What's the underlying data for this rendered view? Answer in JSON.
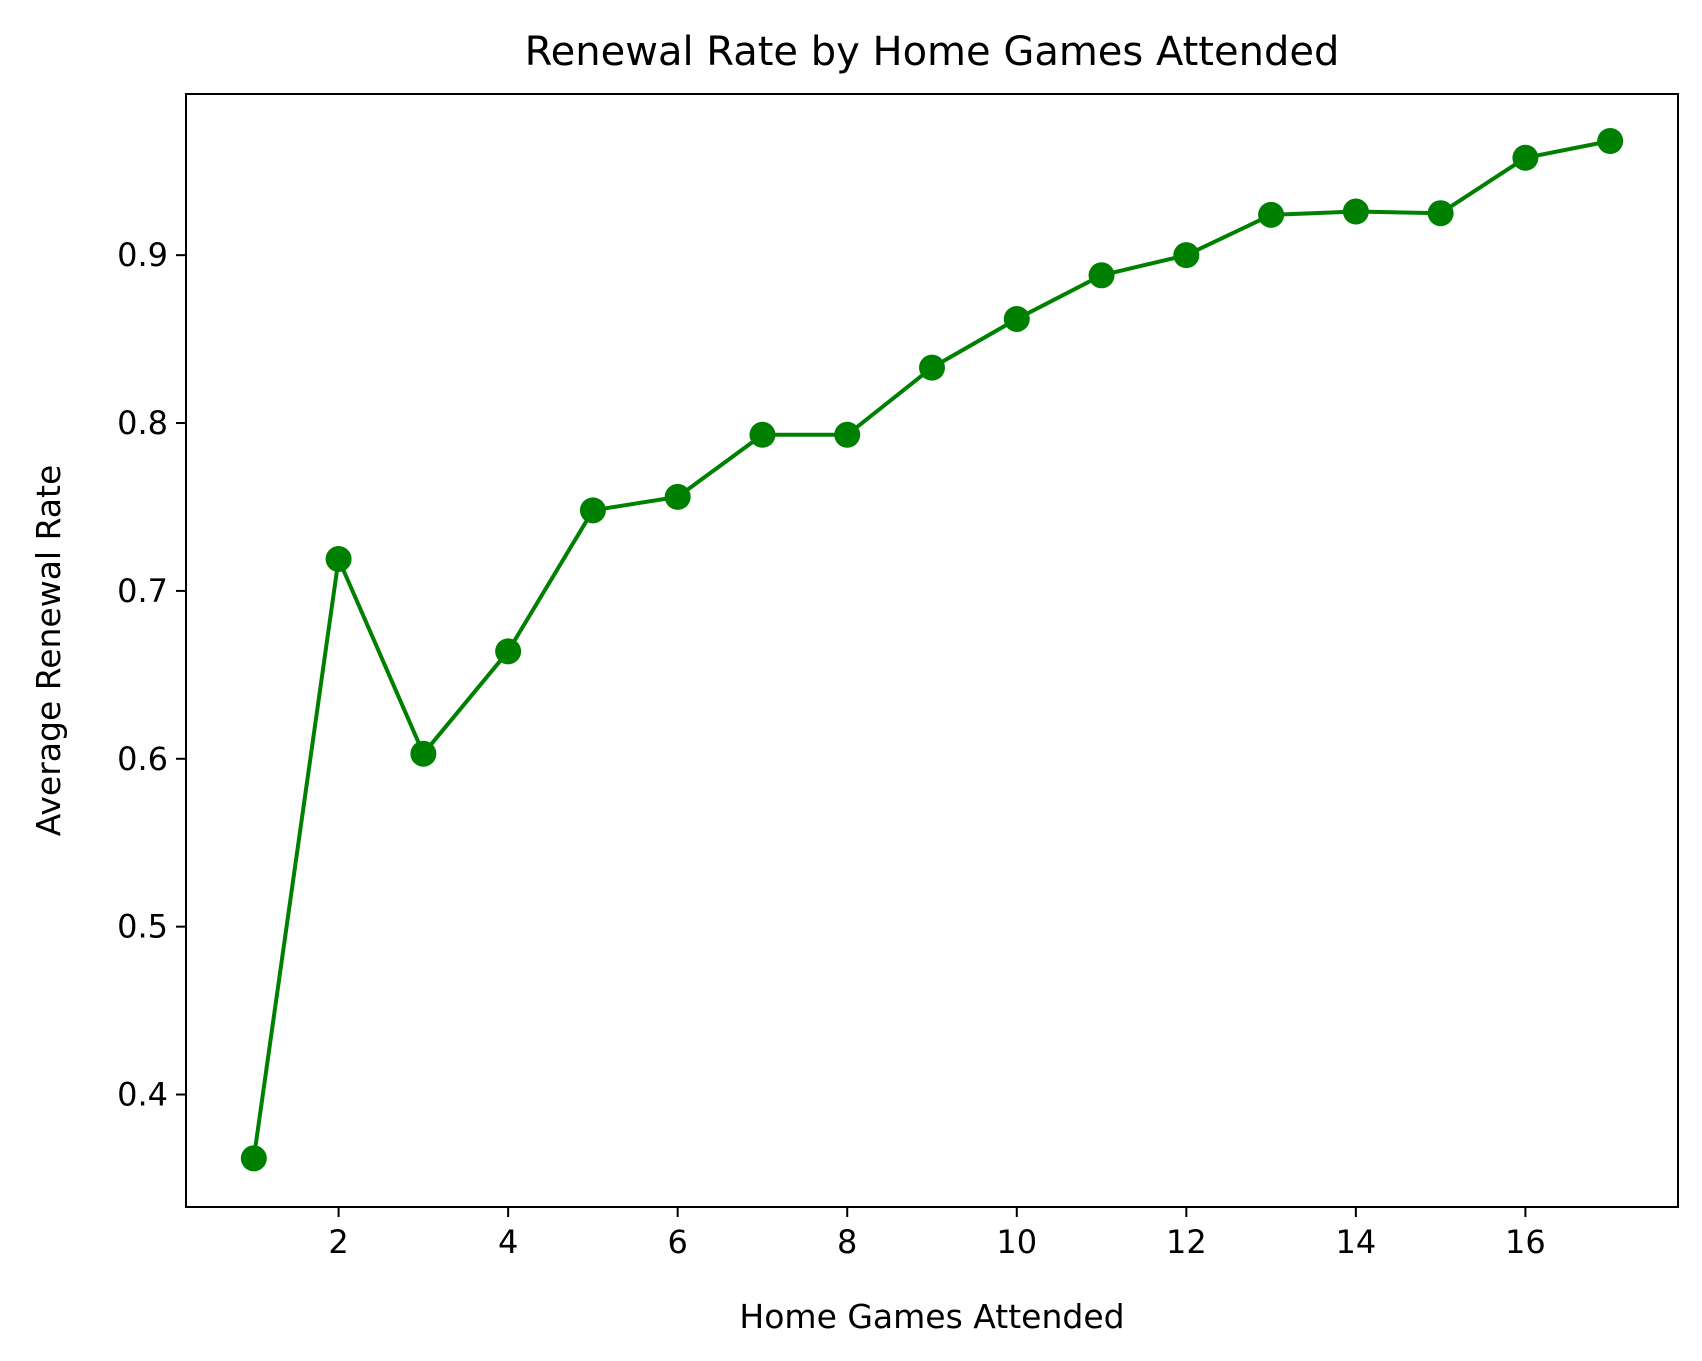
{
  "chart_data": {
    "type": "line",
    "title": "Renewal Rate by Home Games Attended",
    "xlabel": "Home Games Attended",
    "ylabel": "Average Renewal Rate",
    "xlim": [
      0.2,
      17.8
    ],
    "ylim": [
      0.333,
      0.996
    ],
    "xticks": [
      2,
      4,
      6,
      8,
      10,
      12,
      14,
      16
    ],
    "yticks": [
      0.4,
      0.5,
      0.6,
      0.7,
      0.8,
      0.9
    ],
    "grid": false,
    "legend": false,
    "color": "#008000",
    "marker": "circle",
    "x": [
      1,
      2,
      3,
      4,
      5,
      6,
      7,
      8,
      9,
      10,
      11,
      12,
      13,
      14,
      15,
      16,
      17
    ],
    "y": [
      0.362,
      0.719,
      0.603,
      0.664,
      0.748,
      0.756,
      0.793,
      0.793,
      0.833,
      0.862,
      0.888,
      0.9,
      0.924,
      0.926,
      0.925,
      0.958,
      0.968
    ]
  }
}
